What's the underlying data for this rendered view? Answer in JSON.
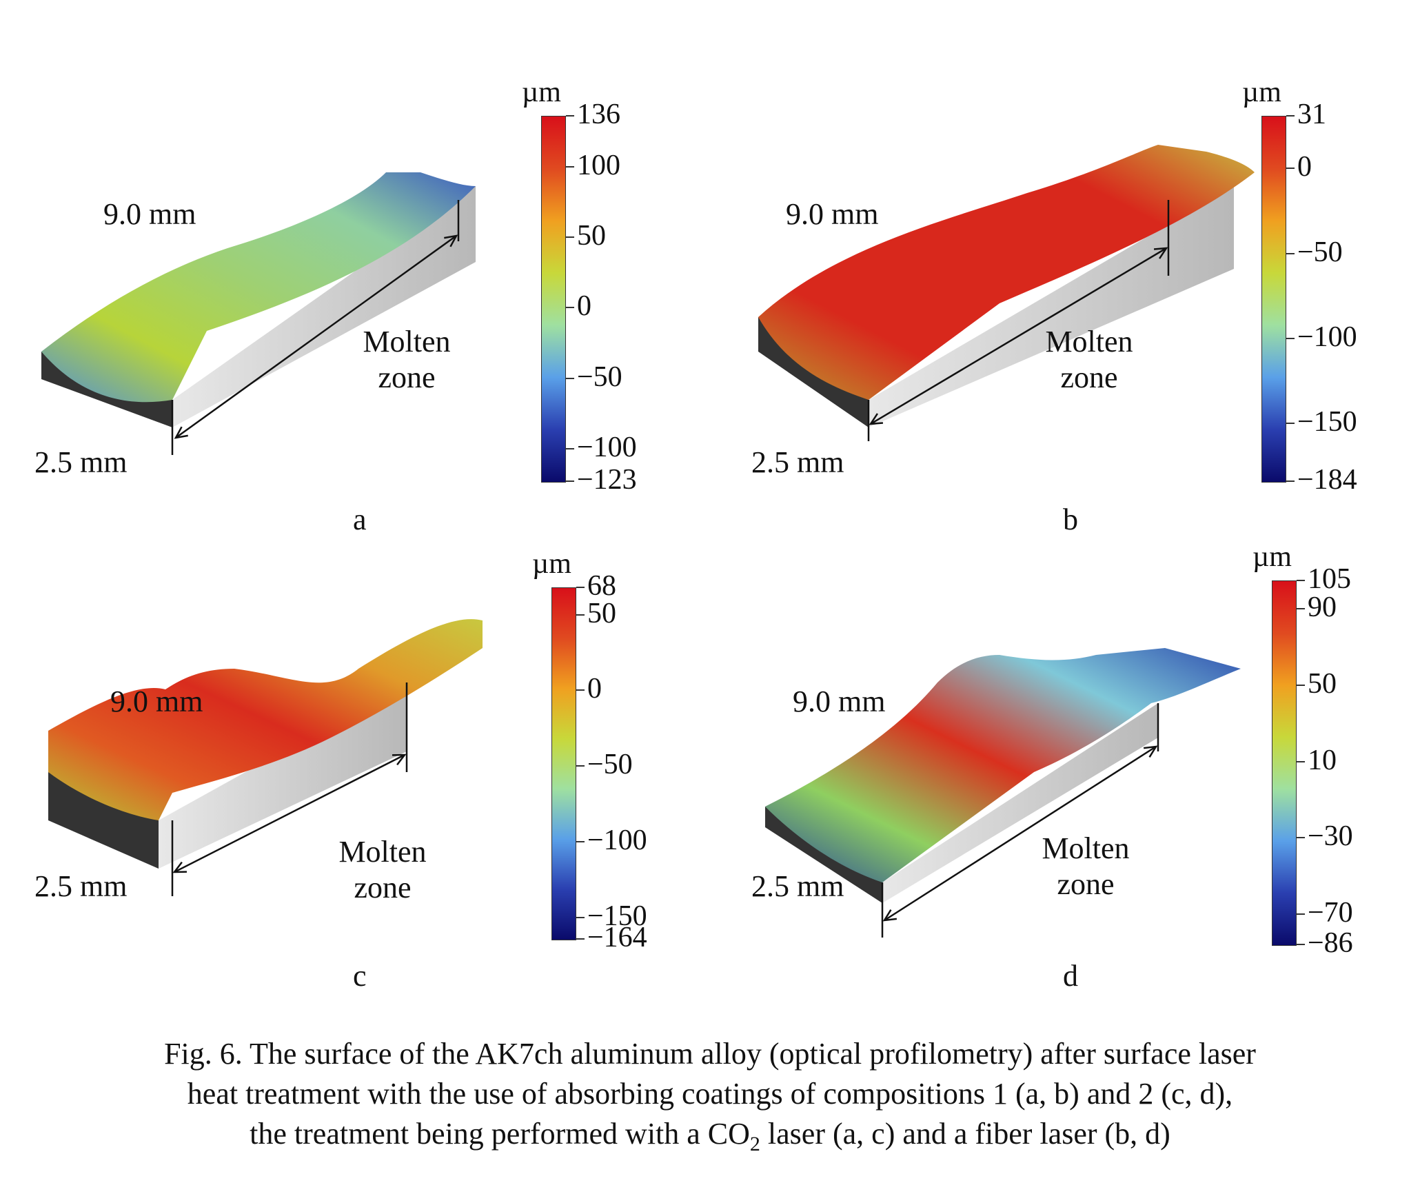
{
  "panels": [
    {
      "id": "a",
      "letter": "a",
      "length_label": "9.0 mm",
      "width_label": "2.5 mm",
      "zone_line1": "Molten",
      "zone_line2": "zone",
      "unit": "µm",
      "scale": [
        136,
        100,
        50,
        0,
        -50,
        -100,
        -123
      ],
      "scale_min": -123,
      "scale_max": 136,
      "surface_colors": [
        "#4f8fd8",
        "#b7d43a",
        "#9fd072",
        "#8fcfa0",
        "#3d5fbf"
      ]
    },
    {
      "id": "b",
      "letter": "b",
      "length_label": "9.0 mm",
      "width_label": "2.5 mm",
      "zone_line1": "Molten",
      "zone_line2": "zone",
      "unit": "µm",
      "scale": [
        31,
        0,
        -50,
        -100,
        -150,
        -184
      ],
      "scale_min": -184,
      "scale_max": 31,
      "surface_colors": [
        "#b8a030",
        "#d8281c",
        "#d8281c",
        "#d8281c",
        "#c8b840"
      ]
    },
    {
      "id": "c",
      "letter": "c",
      "length_label": "9.0 mm",
      "width_label": "2.5 mm",
      "zone_line1": "Molten",
      "zone_line2": "zone",
      "unit": "µm",
      "scale": [
        68,
        50,
        0,
        -50,
        -100,
        -150,
        -164
      ],
      "scale_min": -164,
      "scale_max": 68,
      "surface_colors": [
        "#b4cc38",
        "#e05a22",
        "#d92c1e",
        "#e09a2a",
        "#c8c840"
      ]
    },
    {
      "id": "d",
      "letter": "d",
      "length_label": "9.0 mm",
      "width_label": "2.5 mm",
      "zone_line1": "Molten",
      "zone_line2": "zone",
      "unit": "µm",
      "scale": [
        105,
        90,
        50,
        10,
        -30,
        -70,
        -86
      ],
      "scale_min": -86,
      "scale_max": 105,
      "surface_colors": [
        "#1f3f9f",
        "#8fcf60",
        "#d9301e",
        "#7fc8d8",
        "#2f4faf"
      ]
    }
  ],
  "caption": {
    "line1": "Fig. 6. The surface of the AK7ch aluminum alloy (optical profilometry) after surface laser",
    "line2": "heat treatment with the use of absorbing coatings of compositions 1  (a, b) and 2 (c, d),",
    "line3_pre": "the treatment being performed with a CO",
    "line3_sub": "2",
    "line3_post": " laser (a, c) and a fiber laser (b, d)"
  },
  "colormap": [
    "#0a0a6a",
    "#2a3fb0",
    "#5aa0e8",
    "#9fe0a0",
    "#c8d83a",
    "#f0a020",
    "#e04a20",
    "#d8101a"
  ]
}
